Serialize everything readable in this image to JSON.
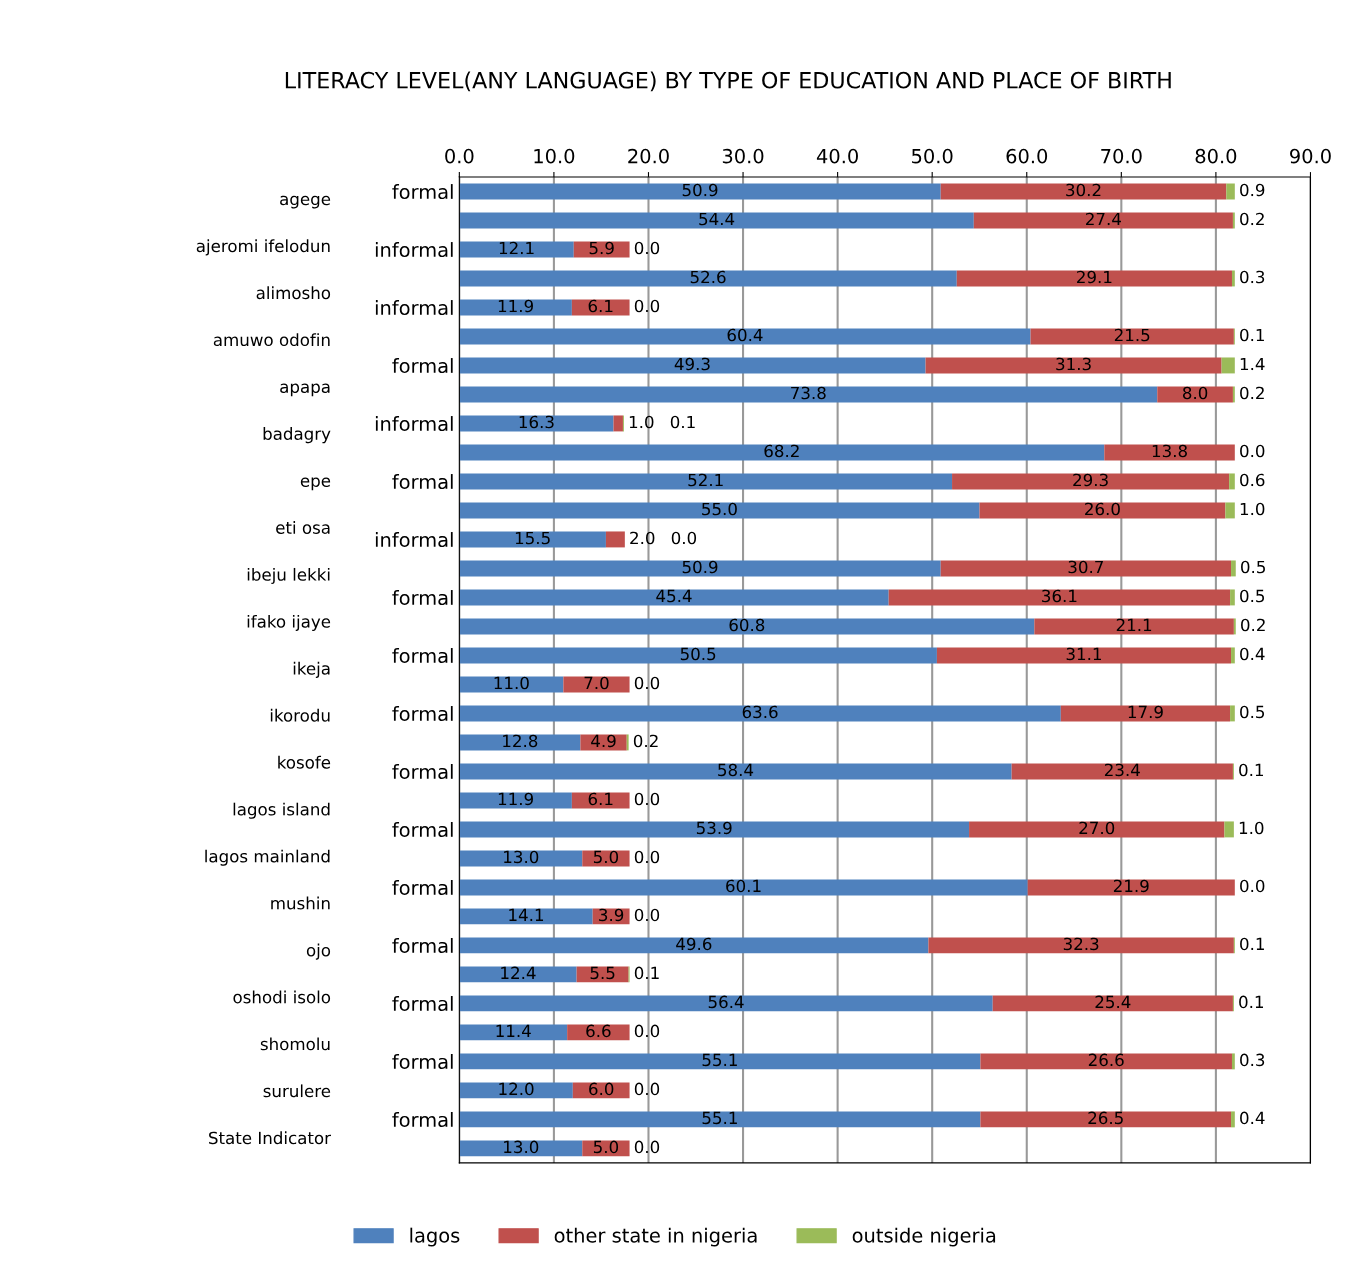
{
  "chart_data": {
    "type": "bar",
    "orientation": "horizontal",
    "stacked": true,
    "title": "LITERACY LEVEL(ANY LANGUAGE) BY TYPE OF EDUCATION AND PLACE OF BIRTH",
    "categories": [
      "formal",
      null,
      "informal",
      null,
      "informal",
      null,
      "formal",
      null,
      "informal",
      null,
      "formal",
      null,
      "informal",
      null,
      "formal",
      null,
      "formal",
      null,
      "formal",
      null,
      "formal",
      null,
      "formal",
      null,
      "formal",
      null,
      "formal",
      null,
      "formal",
      null,
      "formal",
      null,
      "formal",
      null
    ],
    "series": [
      {
        "name": "lagos",
        "color": "#4f81bd",
        "values": [
          50.9,
          54.4,
          12.1,
          52.6,
          11.9,
          60.4,
          49.3,
          73.8,
          16.3,
          68.2,
          52.1,
          55.0,
          15.5,
          50.9,
          45.4,
          60.8,
          50.5,
          11.0,
          63.6,
          12.8,
          58.4,
          11.9,
          53.9,
          13.0,
          60.1,
          14.1,
          49.6,
          12.4,
          56.4,
          11.4,
          55.1,
          12.0,
          55.1,
          13.0
        ],
        "value_labels": [
          "50.9",
          "54.4",
          "12.1",
          "52.6",
          "11.9",
          "60.4",
          "49.3",
          "73.8",
          "16.3",
          "68.2",
          "52.1",
          "55.0",
          "15.5",
          "50.9",
          "45.4",
          "60.8",
          "50.5",
          "11.0",
          "63.6",
          "12.8",
          "58.4",
          "11.9",
          "53.9",
          "13.0",
          "60.1",
          "14.1",
          "49.6",
          "12.4",
          "56.4",
          "11.4",
          "55.1",
          "12.0",
          "55.1",
          "13.0"
        ]
      },
      {
        "name": "other state in nigeria",
        "color": "#c0504d",
        "values": [
          30.2,
          27.4,
          5.9,
          29.1,
          6.1,
          21.5,
          31.3,
          8.0,
          1.0,
          13.8,
          29.3,
          26.0,
          2.0,
          30.7,
          36.1,
          21.1,
          31.1,
          7.0,
          17.9,
          4.9,
          23.4,
          6.1,
          27.0,
          5.0,
          21.9,
          3.9,
          32.3,
          5.5,
          25.4,
          6.6,
          26.6,
          6.0,
          26.5,
          5.0
        ],
        "value_labels": [
          "30.2",
          "27.4",
          "5.9",
          "29.1",
          "6.1",
          "21.5",
          "31.3",
          "8.0",
          "1.0",
          "13.8",
          "29.3",
          "26.0",
          "2.0",
          "30.7",
          "36.1",
          "21.1",
          "31.1",
          "7.0",
          "17.9",
          "4.9",
          "23.4",
          "6.1",
          "27.0",
          "5.0",
          "21.9",
          "3.9",
          "32.3",
          "5.5",
          "25.4",
          "6.6",
          "26.6",
          "6.0",
          "26.5",
          "5.0"
        ]
      },
      {
        "name": "outside nigeria",
        "color": "#9bbb59",
        "values": [
          0.9,
          0.2,
          0.0,
          0.3,
          0.0,
          0.1,
          1.4,
          0.2,
          0.1,
          0.0,
          0.6,
          1.0,
          0.0,
          0.5,
          0.5,
          0.2,
          0.4,
          0.0,
          0.5,
          0.2,
          0.1,
          0.0,
          1.0,
          0.0,
          0.0,
          0.0,
          0.1,
          0.1,
          0.1,
          0.0,
          0.3,
          0.0,
          0.4,
          0.0
        ],
        "value_labels": [
          "0.9",
          "0.2",
          "0.0",
          "0.3",
          "0.0",
          "0.1",
          "1.4",
          "0.2",
          "0.1",
          "0.0",
          "0.6",
          "1.0",
          "0.0",
          "0.5",
          "0.5",
          "0.2",
          "0.4",
          "0.0",
          "0.5",
          "0.2",
          "0.1",
          "0.0",
          "1.0",
          "0.0",
          "0.0",
          "0.0",
          "0.1",
          "0.1",
          "0.1",
          "0.0",
          "0.3",
          "0.0",
          "0.4",
          "0.0"
        ]
      }
    ],
    "annotations": [
      "agege",
      "ajeromi ifelodun",
      "alimosho",
      "amuwo odofin",
      "apapa",
      "badagry",
      "epe",
      "eti osa",
      "ibeju lekki",
      "ifako ijaye",
      "ikeja",
      "ikorodu",
      "kosofe",
      "lagos island",
      "lagos mainland",
      "mushin",
      "ojo",
      "oshodi isolo",
      "shomolu",
      "surulere",
      "State Indicator"
    ],
    "xlim": [
      0,
      90
    ],
    "xticks": [
      {
        "value": 0,
        "label": "0.0"
      },
      {
        "value": 10,
        "label": "10.0"
      },
      {
        "value": 20,
        "label": "20.0"
      },
      {
        "value": 30,
        "label": "30.0"
      },
      {
        "value": 40,
        "label": "40.0"
      },
      {
        "value": 50,
        "label": "50.0"
      },
      {
        "value": 60,
        "label": "60.0"
      },
      {
        "value": 70,
        "label": "70.0"
      },
      {
        "value": 80,
        "label": "80.0"
      },
      {
        "value": 90,
        "label": "90.0"
      }
    ],
    "grid": "x",
    "legend": "bottom"
  }
}
